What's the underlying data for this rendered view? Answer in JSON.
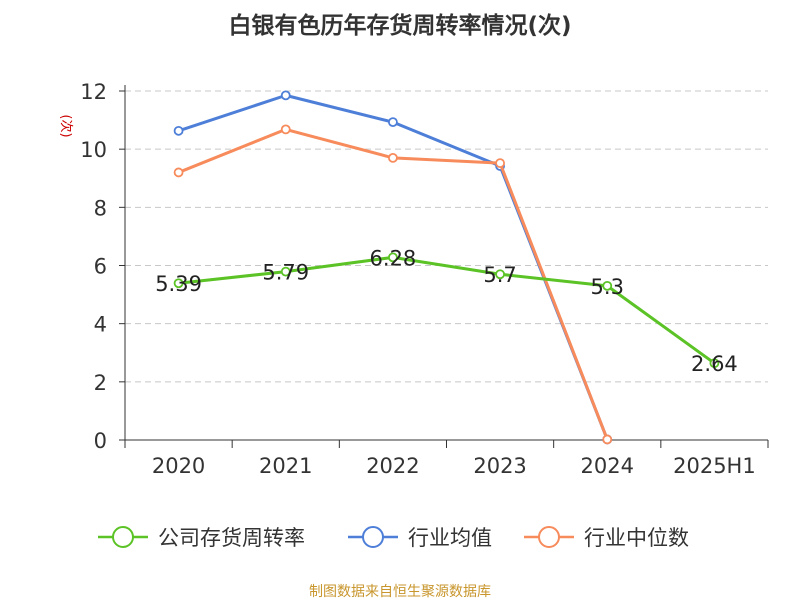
{
  "chart_data": {
    "type": "line",
    "title": "白银有色历年存货周转率情况(次)",
    "ylabel": "(次)",
    "ylim": [
      0,
      12
    ],
    "yticks": [
      "0",
      "2",
      "4",
      "6",
      "8",
      "10",
      "12"
    ],
    "categories": [
      "2020",
      "2021",
      "2022",
      "2023",
      "2024",
      "2025H1"
    ],
    "grid": true,
    "legend_position": "bottom",
    "series": [
      {
        "name": "公司存货周转率",
        "color": "#5bc326",
        "values": [
          5.39,
          5.79,
          6.28,
          5.7,
          5.3,
          2.64
        ],
        "labels": [
          "5.39",
          "5.79",
          "6.28",
          "5.7",
          "5.3",
          "2.64"
        ]
      },
      {
        "name": "行业均值",
        "color": "#4e7fd8",
        "values": [
          10.63,
          11.85,
          10.93,
          9.42,
          0.02,
          null
        ]
      },
      {
        "name": "行业中位数",
        "color": "#f78b5b",
        "values": [
          9.2,
          10.68,
          9.7,
          9.52,
          0.02,
          null
        ]
      }
    ]
  },
  "source": "制图数据来自恒生聚源数据库",
  "colors": {
    "axis": "#333333",
    "grid": "#c8c8c8",
    "ylabel": "#cc0000",
    "source": "#c8962c"
  }
}
